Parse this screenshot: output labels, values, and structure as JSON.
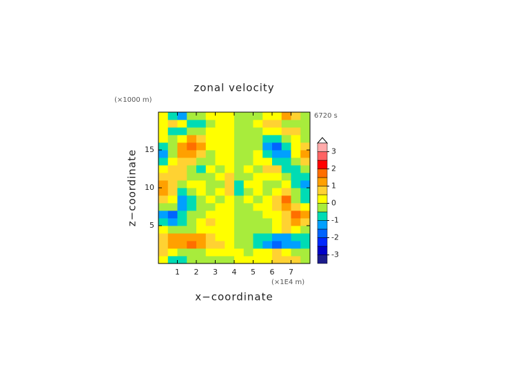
{
  "chart_data": {
    "type": "contour",
    "title": "zonal velocity",
    "x_label": "x−coordinate",
    "y_label": "z−coordinate",
    "x_unit": "(×1E4 m)",
    "y_unit": "(×1000 m)",
    "time_label": "6720 s",
    "xlim": [
      0,
      8
    ],
    "ylim": [
      0,
      20
    ],
    "xticks": [
      1,
      2,
      3,
      4,
      5,
      6,
      7
    ],
    "yticks": [
      5,
      10,
      15
    ],
    "x": [
      0.25,
      0.75,
      1.25,
      1.75,
      2.25,
      2.75,
      3.25,
      3.75,
      4.25,
      4.75,
      5.25,
      5.75,
      6.25,
      6.75,
      7.25,
      7.75
    ],
    "y": [
      0.5,
      1.5,
      2.5,
      3.5,
      4.5,
      5.5,
      6.5,
      7.5,
      8.5,
      9.5,
      10.5,
      11.5,
      12.5,
      13.5,
      14.5,
      15.5,
      16.5,
      17.5,
      18.5,
      19.5
    ],
    "z": [
      [
        0.3,
        -0.6,
        -0.8,
        -0.5,
        -0.3,
        -0.2,
        -0.1,
        -0.3,
        0.3,
        0.1,
        0.2,
        0.3,
        0.5,
        0.8,
        0.6,
        -0.3
      ],
      [
        0.5,
        0.2,
        -0.3,
        -0.5,
        -0.3,
        0,
        0.1,
        0,
        0,
        -0.1,
        0,
        0.3,
        0.5,
        0.3,
        -0.2,
        -0.5
      ],
      [
        0.8,
        1.2,
        1.4,
        1.8,
        1.3,
        0.8,
        0.5,
        0.3,
        -0.3,
        -0.5,
        -0.8,
        -1.3,
        -1.8,
        -1.4,
        -1.2,
        -0.8
      ],
      [
        0.6,
        1.0,
        1.2,
        1.3,
        1.0,
        0.6,
        0.3,
        0.2,
        -0.2,
        -0.3,
        -0.6,
        -1.0,
        -1.3,
        -1.2,
        -1.0,
        -0.6
      ],
      [
        0.2,
        -0.2,
        -0.5,
        -0.2,
        0.2,
        0.4,
        0.3,
        0.1,
        -0.1,
        -0.3,
        -0.4,
        -0.2,
        0.2,
        0.5,
        0.2,
        -0.2
      ],
      [
        -0.6,
        -1.2,
        -0.7,
        -0.2,
        0.1,
        0.5,
        0.4,
        0.2,
        -0.2,
        -0.4,
        -0.5,
        -0.1,
        0.2,
        0.7,
        1.2,
        0.6
      ],
      [
        -1.3,
        -1.8,
        -0.8,
        -0.3,
        -0.4,
        0.2,
        0.3,
        0.3,
        -0.3,
        -0.3,
        -0.2,
        0.4,
        0.3,
        0.8,
        1.8,
        1.3
      ],
      [
        -0.2,
        -0.5,
        -1.4,
        -0.6,
        -0.2,
        -0.3,
        0.2,
        0.4,
        -0.4,
        -0.2,
        0.3,
        0.2,
        0.6,
        1.4,
        0.5,
        0.2
      ],
      [
        0.6,
        0.4,
        -1.5,
        -0.8,
        -0.1,
        0.2,
        -0.2,
        0.2,
        -0.2,
        0.2,
        -0.2,
        0.1,
        0.8,
        1.5,
        -0.4,
        -0.6
      ],
      [
        1.0,
        0.5,
        -0.8,
        -0.4,
        0.3,
        -0.2,
        0.1,
        0.6,
        -0.6,
        -0.1,
        0.2,
        -0.3,
        0.4,
        0.8,
        -0.5,
        -1.0
      ],
      [
        1.1,
        0.6,
        -0.3,
        0.2,
        0.4,
        -0.1,
        -0.3,
        0.7,
        -0.7,
        0.3,
        0.1,
        -0.4,
        -0.2,
        0.3,
        -0.6,
        -1.1
      ],
      [
        0.6,
        0.8,
        0.5,
        -0.3,
        -0.2,
        -0.4,
        0.2,
        0.5,
        -0.5,
        -0.2,
        0.4,
        0.2,
        0.3,
        -0.5,
        -0.8,
        -0.6
      ],
      [
        0.2,
        0.9,
        0.6,
        -0.5,
        -0.6,
        0.2,
        -0.3,
        0.3,
        -0.3,
        0.3,
        -0.2,
        0.6,
        0.5,
        -0.6,
        -0.9,
        -0.2
      ],
      [
        -0.8,
        0.4,
        0.9,
        0.6,
        -0.2,
        -0.4,
        0.2,
        0.3,
        -0.3,
        -0.2,
        0.4,
        0.2,
        -0.6,
        -0.9,
        -0.4,
        0.8
      ],
      [
        -1.3,
        -0.2,
        1.2,
        1.4,
        0.8,
        -0.2,
        0.3,
        0.4,
        -0.4,
        -0.3,
        0.2,
        -0.8,
        -1.4,
        -1.2,
        0.2,
        1.3
      ],
      [
        -0.6,
        -0.3,
        1.0,
        1.8,
        1.2,
        0.4,
        0.1,
        0.3,
        -0.3,
        -0.1,
        -0.4,
        -1.2,
        -1.8,
        -1.0,
        0.3,
        0.6
      ],
      [
        0.2,
        -0.4,
        0.3,
        1.0,
        0.8,
        0.3,
        0.1,
        0.2,
        -0.2,
        -0.1,
        -0.3,
        -0.8,
        -1.0,
        -0.3,
        0.4,
        -0.2
      ],
      [
        0.3,
        -0.6,
        -0.8,
        -0.3,
        -0.2,
        0.1,
        0.2,
        0.1,
        -0.1,
        -0.2,
        -0.1,
        0.2,
        0.3,
        0.8,
        0.6,
        -0.3
      ],
      [
        0.2,
        0.5,
        0.2,
        -0.6,
        -0.8,
        -0.3,
        0.2,
        0.1,
        -0.1,
        -0.2,
        0.3,
        0.8,
        0.6,
        -0.2,
        -0.5,
        -0.2
      ],
      [
        0.3,
        -0.7,
        -1.2,
        -0.4,
        -0.2,
        0.1,
        0.2,
        0.1,
        -0.1,
        -0.2,
        -0.1,
        0.2,
        0.4,
        1.2,
        0.7,
        -0.3
      ]
    ],
    "levels": [
      -3.5,
      -3,
      -2.5,
      -2,
      -1.5,
      -1,
      -0.5,
      0,
      0.5,
      1,
      1.5,
      2,
      2.5,
      3,
      3.5
    ],
    "colors": [
      "#1c1c8c",
      "#0000c8",
      "#0028ff",
      "#0064ff",
      "#00a0ff",
      "#00dcb4",
      "#a8ec3c",
      "#ffff00",
      "#ffd232",
      "#ffa000",
      "#ff6e00",
      "#ff0000",
      "#ff6464",
      "#ffaaaa"
    ],
    "colorbar_ticks": [
      -3,
      -2,
      -1,
      0,
      1,
      2,
      3
    ]
  }
}
